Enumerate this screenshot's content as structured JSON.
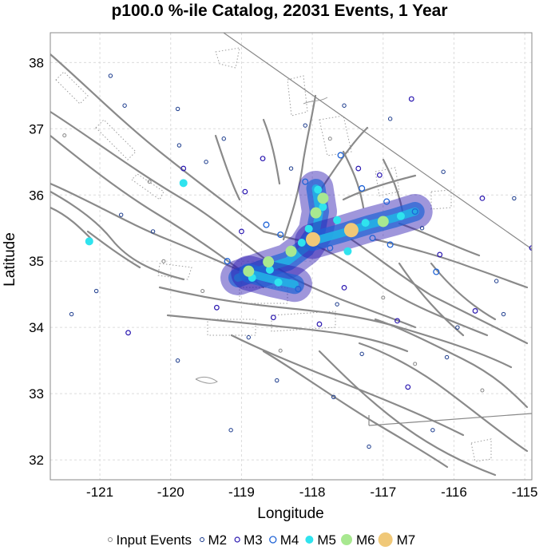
{
  "chart_data": {
    "type": "scatter",
    "title": "p100.0 %-ile Catalog, 22031 Events, 1 Year",
    "xlabel": "Longitude",
    "ylabel": "Latitude",
    "xlim": [
      -121.7,
      -114.9
    ],
    "ylim": [
      31.7,
      38.45
    ],
    "xticks": [
      -121,
      -120,
      -119,
      -118,
      -117,
      -116,
      -115
    ],
    "yticks": [
      32,
      33,
      34,
      35,
      36,
      37,
      38
    ],
    "grid": true,
    "legend_position": "bottom",
    "legend": [
      {
        "label": "Input Events",
        "style": "input"
      },
      {
        "label": "M2",
        "style": "m2"
      },
      {
        "label": "M3",
        "style": "m3"
      },
      {
        "label": "M4",
        "style": "m4"
      },
      {
        "label": "M5",
        "style": "m5"
      },
      {
        "label": "M6",
        "style": "m6"
      },
      {
        "label": "M7",
        "style": "m7"
      }
    ],
    "colors": {
      "input": "#888888",
      "m2": "#1a3a8c",
      "m3": "#2a17b0",
      "m4": "#1f63d6",
      "m5": "#2fe3ee",
      "m6": "#a8e890",
      "m7": "#f0c878",
      "fault": "#8a8a8a",
      "background_glow": "#22b0e6"
    },
    "series": [
      {
        "name": "M7",
        "style": "m7",
        "points": [
          [
            -117.99,
            35.33
          ],
          [
            -117.45,
            35.47
          ]
        ]
      },
      {
        "name": "M6",
        "style": "m6",
        "points": [
          [
            -118.9,
            34.85
          ],
          [
            -118.3,
            35.15
          ],
          [
            -117.95,
            35.73
          ],
          [
            -117.0,
            35.6
          ],
          [
            -118.62,
            34.99
          ],
          [
            -117.85,
            35.95
          ]
        ]
      },
      {
        "name": "M5",
        "style": "m5",
        "points": [
          [
            -121.15,
            35.3
          ],
          [
            -119.82,
            36.18
          ],
          [
            -117.92,
            36.08
          ],
          [
            -117.85,
            35.82
          ],
          [
            -117.65,
            35.62
          ],
          [
            -117.25,
            35.58
          ],
          [
            -116.75,
            35.68
          ],
          [
            -117.5,
            35.15
          ],
          [
            -118.48,
            34.68
          ],
          [
            -118.85,
            34.75
          ],
          [
            -118.05,
            35.49
          ],
          [
            -118.15,
            35.28
          ],
          [
            -118.6,
            34.87
          ]
        ]
      },
      {
        "name": "M4",
        "style": "m4",
        "points": [
          [
            -116.25,
            34.84
          ],
          [
            -117.6,
            36.6
          ],
          [
            -117.3,
            36.1
          ],
          [
            -118.65,
            35.55
          ],
          [
            -116.9,
            35.25
          ],
          [
            -118.2,
            34.58
          ],
          [
            -117.15,
            35.35
          ],
          [
            -116.55,
            35.75
          ],
          [
            -119.2,
            35.0
          ],
          [
            -118.1,
            36.2
          ],
          [
            -117.75,
            35.2
          ],
          [
            -118.45,
            35.4
          ],
          [
            -116.95,
            35.9
          ]
        ]
      },
      {
        "name": "M3",
        "style": "m3",
        "points": [
          [
            -120.6,
            33.92
          ],
          [
            -119.82,
            36.4
          ],
          [
            -116.6,
            37.45
          ],
          [
            -114.9,
            35.2
          ],
          [
            -115.7,
            34.25
          ],
          [
            -116.65,
            33.1
          ],
          [
            -118.7,
            36.55
          ],
          [
            -117.05,
            36.3
          ],
          [
            -115.6,
            35.95
          ],
          [
            -119.35,
            34.3
          ],
          [
            -117.9,
            34.05
          ],
          [
            -119.0,
            35.45
          ],
          [
            -116.2,
            35.1
          ],
          [
            -117.55,
            34.6
          ],
          [
            -118.95,
            36.05
          ],
          [
            -116.8,
            34.1
          ],
          [
            -117.35,
            36.4
          ],
          [
            -118.55,
            34.15
          ]
        ]
      },
      {
        "name": "M2",
        "style": "m2",
        "points": [
          [
            -120.85,
            37.8
          ],
          [
            -120.65,
            37.35
          ],
          [
            -119.9,
            37.3
          ],
          [
            -119.88,
            36.75
          ],
          [
            -121.4,
            34.2
          ],
          [
            -120.7,
            35.7
          ],
          [
            -121.05,
            34.55
          ],
          [
            -116.3,
            32.45
          ],
          [
            -115.95,
            34.0
          ],
          [
            -115.3,
            34.2
          ],
          [
            -115.15,
            35.95
          ],
          [
            -115.4,
            34.7
          ],
          [
            -119.9,
            33.5
          ],
          [
            -119.15,
            32.45
          ],
          [
            -117.2,
            32.2
          ],
          [
            -117.7,
            32.95
          ],
          [
            -118.5,
            33.2
          ],
          [
            -116.9,
            37.15
          ],
          [
            -117.55,
            37.35
          ],
          [
            -118.1,
            37.05
          ],
          [
            -119.25,
            36.85
          ],
          [
            -116.15,
            36.35
          ],
          [
            -119.5,
            36.5
          ],
          [
            -120.25,
            35.45
          ],
          [
            -118.9,
            33.85
          ],
          [
            -117.3,
            33.6
          ],
          [
            -116.1,
            33.55
          ],
          [
            -117.65,
            34.35
          ],
          [
            -116.45,
            35.5
          ],
          [
            -118.3,
            36.4
          ]
        ]
      },
      {
        "name": "Input Events",
        "style": "input",
        "points": [
          [
            -121.5,
            36.9
          ],
          [
            -120.3,
            36.2
          ],
          [
            -118.45,
            33.65
          ],
          [
            -116.55,
            33.45
          ],
          [
            -115.6,
            33.05
          ],
          [
            -119.55,
            34.55
          ],
          [
            -117.0,
            34.45
          ],
          [
            -120.1,
            35.0
          ],
          [
            -117.75,
            36.85
          ]
        ]
      }
    ],
    "cluster_paths": [
      [
        [
          -119.05,
          34.75
        ],
        [
          -118.7,
          34.88
        ],
        [
          -118.35,
          35.0
        ],
        [
          -118.1,
          35.2
        ],
        [
          -117.95,
          35.45
        ],
        [
          -117.9,
          35.75
        ],
        [
          -117.95,
          36.1
        ]
      ],
      [
        [
          -118.0,
          35.3
        ],
        [
          -117.6,
          35.42
        ],
        [
          -117.2,
          35.55
        ],
        [
          -116.85,
          35.65
        ],
        [
          -116.55,
          35.75
        ]
      ],
      [
        [
          -118.9,
          34.82
        ],
        [
          -118.55,
          34.72
        ],
        [
          -118.25,
          34.65
        ]
      ]
    ]
  }
}
